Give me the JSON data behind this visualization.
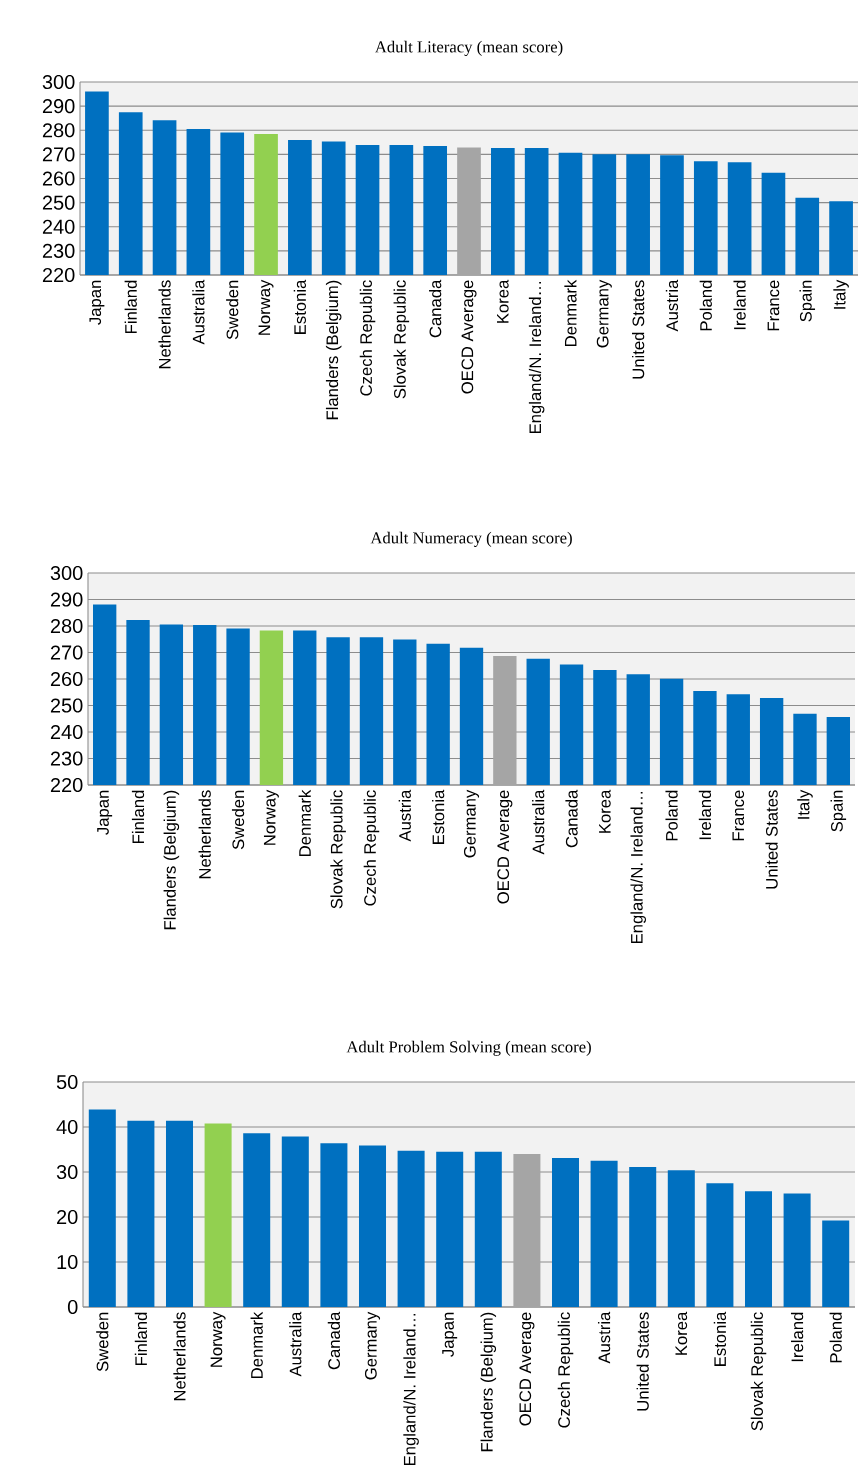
{
  "chart_data": [
    {
      "type": "bar",
      "title": "Adult Literacy (mean score)",
      "categories": [
        "Japan",
        "Finland",
        "Netherlands",
        "Australia",
        "Sweden",
        "Norway",
        "Estonia",
        "Flanders (Belgium)",
        "Czech Republic",
        "Slovak Republic",
        "Canada",
        "OECD Average",
        "Korea",
        "England/N. Ireland…",
        "Denmark",
        "Germany",
        "United States",
        "Austria",
        "Poland",
        "Ireland",
        "France",
        "Spain",
        "Italy"
      ],
      "values": [
        296.1,
        287.5,
        284.1,
        280.5,
        279.1,
        278.4,
        276.0,
        275.3,
        273.9,
        273.9,
        273.5,
        272.8,
        272.6,
        272.6,
        270.7,
        270.0,
        270.0,
        269.6,
        267.1,
        266.7,
        262.4,
        252.0,
        250.6
      ],
      "colors": [
        "#0070c0",
        "#0070c0",
        "#0070c0",
        "#0070c0",
        "#0070c0",
        "#92d050",
        "#0070c0",
        "#0070c0",
        "#0070c0",
        "#0070c0",
        "#0070c0",
        "#a5a5a5",
        "#0070c0",
        "#0070c0",
        "#0070c0",
        "#0070c0",
        "#0070c0",
        "#0070c0",
        "#0070c0",
        "#0070c0",
        "#0070c0",
        "#0070c0",
        "#0070c0"
      ],
      "ylim": [
        220,
        300
      ],
      "yticks": [
        220,
        230,
        240,
        250,
        260,
        270,
        280,
        290,
        300
      ],
      "grid": "y"
    },
    {
      "type": "bar",
      "title": "Adult Numeracy (mean score)",
      "categories": [
        "Japan",
        "Finland",
        "Flanders (Belgium)",
        "Netherlands",
        "Sweden",
        "Norway",
        "Denmark",
        "Slovak Republic",
        "Czech Republic",
        "Austria",
        "Estonia",
        "Germany",
        "OECD Average",
        "Australia",
        "Canada",
        "Korea",
        "England/N. Ireland…",
        "Poland",
        "Ireland",
        "France",
        "United States",
        "Italy",
        "Spain"
      ],
      "values": [
        288.1,
        282.3,
        280.6,
        280.4,
        279.1,
        278.3,
        278.3,
        275.8,
        275.8,
        274.9,
        273.3,
        271.8,
        268.7,
        267.6,
        265.5,
        263.4,
        261.8,
        260.1,
        255.5,
        254.2,
        252.8,
        246.9,
        245.7
      ],
      "colors": [
        "#0070c0",
        "#0070c0",
        "#0070c0",
        "#0070c0",
        "#0070c0",
        "#92d050",
        "#0070c0",
        "#0070c0",
        "#0070c0",
        "#0070c0",
        "#0070c0",
        "#0070c0",
        "#a5a5a5",
        "#0070c0",
        "#0070c0",
        "#0070c0",
        "#0070c0",
        "#0070c0",
        "#0070c0",
        "#0070c0",
        "#0070c0",
        "#0070c0",
        "#0070c0"
      ],
      "ylim": [
        220,
        300
      ],
      "yticks": [
        220,
        230,
        240,
        250,
        260,
        270,
        280,
        290,
        300
      ],
      "grid": "y"
    },
    {
      "type": "bar",
      "title": "Adult Problem Solving (mean score)",
      "categories": [
        "Sweden",
        "Finland",
        "Netherlands",
        "Norway",
        "Denmark",
        "Australia",
        "Canada",
        "Germany",
        "England/N. Ireland…",
        "Japan",
        "Flanders (Belgium)",
        "OECD Average",
        "Czech Republic",
        "Austria",
        "United States",
        "Korea",
        "Estonia",
        "Slovak Republic",
        "Ireland",
        "Poland"
      ],
      "values": [
        43.9,
        41.4,
        41.4,
        40.8,
        38.6,
        37.9,
        36.4,
        35.9,
        34.7,
        34.5,
        34.5,
        34.0,
        33.1,
        32.5,
        31.1,
        30.4,
        27.5,
        25.7,
        25.2,
        19.2
      ],
      "colors": [
        "#0070c0",
        "#0070c0",
        "#0070c0",
        "#92d050",
        "#0070c0",
        "#0070c0",
        "#0070c0",
        "#0070c0",
        "#0070c0",
        "#0070c0",
        "#0070c0",
        "#a5a5a5",
        "#0070c0",
        "#0070c0",
        "#0070c0",
        "#0070c0",
        "#0070c0",
        "#0070c0",
        "#0070c0",
        "#0070c0"
      ],
      "ylim": [
        0,
        50
      ],
      "yticks": [
        0,
        10,
        20,
        30,
        40,
        50
      ],
      "grid": "y"
    }
  ]
}
